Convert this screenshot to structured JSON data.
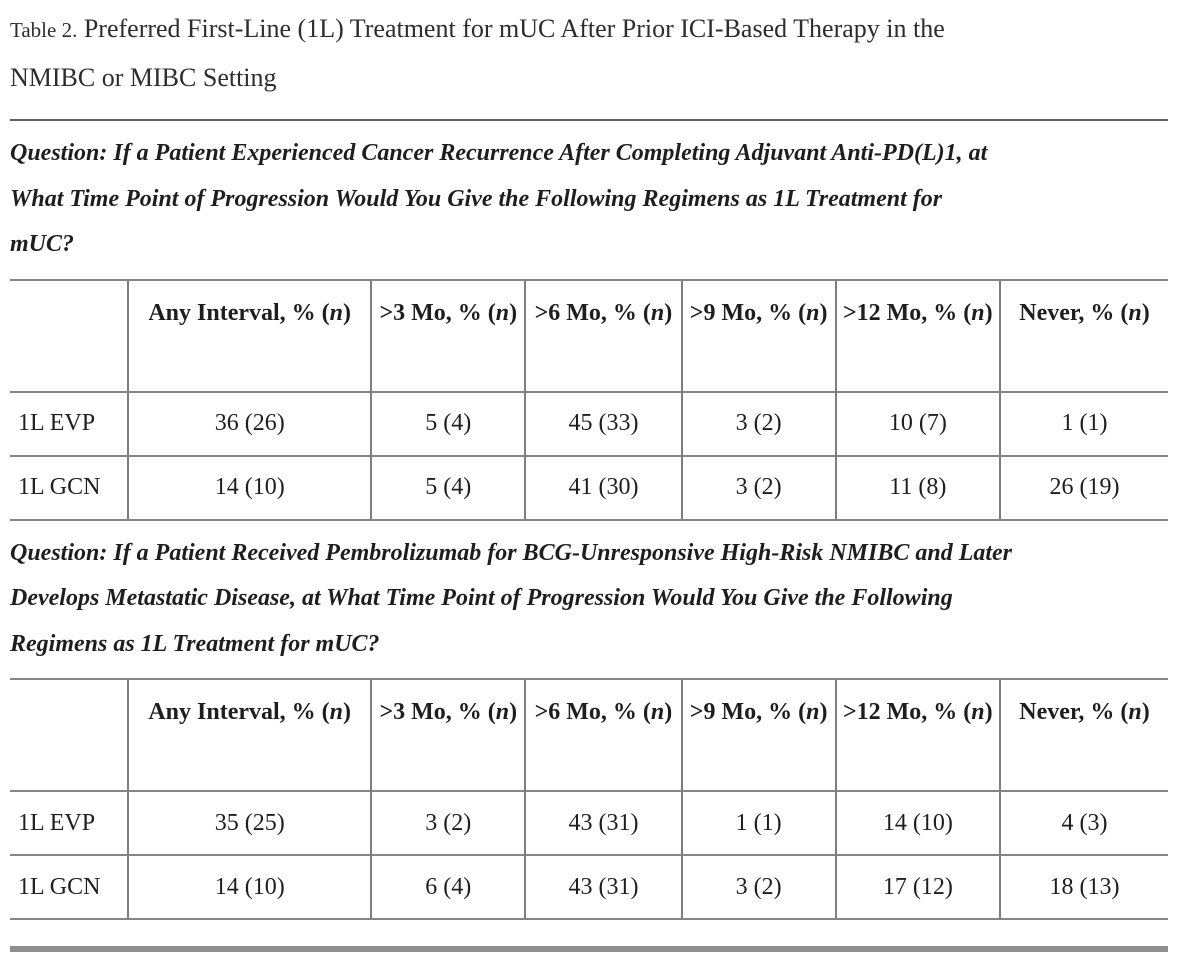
{
  "title": {
    "label": "Table 2.",
    "text": "Preferred First-Line (1L) Treatment for mUC After Prior ICI-Based Therapy in the\nNMIBC or MIBC Setting"
  },
  "sections": [
    {
      "question": "Question: If a Patient Experienced Cancer Recurrence After Completing Adjuvant Anti-PD(L)1, at\nWhat Time Point of Progression Would You Give the Following Regimens as 1L Treatment for\nmUC?",
      "table": {
        "corner": "",
        "columns": [
          "Any Interval, % (n)",
          ">3 Mo, % (n)",
          ">6 Mo, % (n)",
          ">9 Mo, % (n)",
          ">12 Mo, % (n)",
          "Never, % (n)"
        ],
        "rows": [
          {
            "label": "1L EVP",
            "values": [
              "36 (26)",
              "5 (4)",
              "45 (33)",
              "3 (2)",
              "10 (7)",
              "1 (1)"
            ]
          },
          {
            "label": "1L GCN",
            "values": [
              "14 (10)",
              "5 (4)",
              "41 (30)",
              "3 (2)",
              "11 (8)",
              "26 (19)"
            ]
          }
        ]
      }
    },
    {
      "question": "Question: If a Patient Received Pembrolizumab for BCG-Unresponsive High-Risk NMIBC and Later\nDevelops Metastatic Disease, at What Time Point of Progression Would You Give the Following\nRegimens as 1L Treatment for mUC?",
      "table": {
        "corner": "",
        "columns": [
          "Any Interval, % (n)",
          ">3 Mo, % (n)",
          ">6 Mo, % (n)",
          ">9 Mo, % (n)",
          ">12 Mo, % (n)",
          "Never, % (n)"
        ],
        "rows": [
          {
            "label": "1L EVP",
            "values": [
              "35 (25)",
              "3 (2)",
              "43 (31)",
              "1 (1)",
              "14 (10)",
              "4 (3)"
            ]
          },
          {
            "label": "1L GCN",
            "values": [
              "14 (10)",
              "6 (4)",
              "43 (31)",
              "3 (2)",
              "17 (12)",
              "18 (13)"
            ]
          }
        ]
      }
    }
  ]
}
